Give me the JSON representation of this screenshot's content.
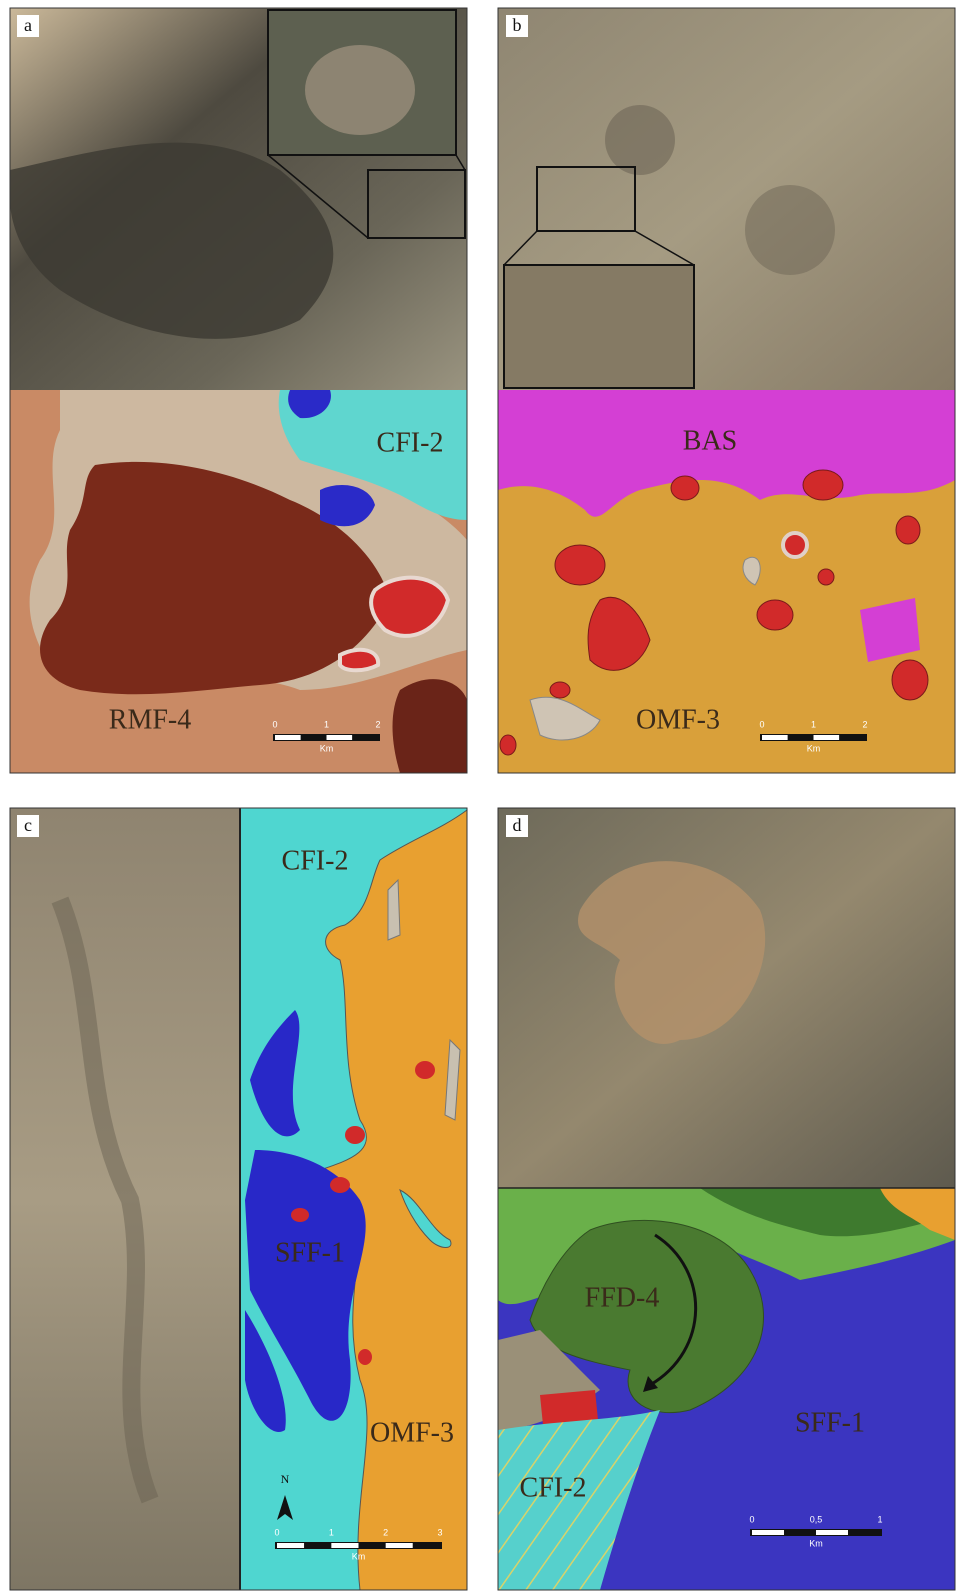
{
  "panels": [
    {
      "label": "a",
      "units": [
        "CFI-2",
        "RMF-4"
      ],
      "scale": {
        "ticks": [
          "0",
          "1",
          "2"
        ],
        "unit": "Km"
      }
    },
    {
      "label": "b",
      "units": [
        "BAS",
        "OMF-3"
      ],
      "scale": {
        "ticks": [
          "0",
          "1",
          "2"
        ],
        "unit": "Km"
      }
    },
    {
      "label": "c",
      "units": [
        "CFI-2",
        "SFF-1",
        "OMF-3"
      ],
      "north": "N",
      "scale": {
        "ticks": [
          "0",
          "1",
          "2",
          "3"
        ],
        "unit": "Km"
      }
    },
    {
      "label": "d",
      "units": [
        "FFD-4",
        "SFF-1",
        "CFI-2"
      ],
      "scale": {
        "ticks": [
          "0",
          "0,5",
          "1"
        ],
        "unit": "Km"
      }
    }
  ]
}
